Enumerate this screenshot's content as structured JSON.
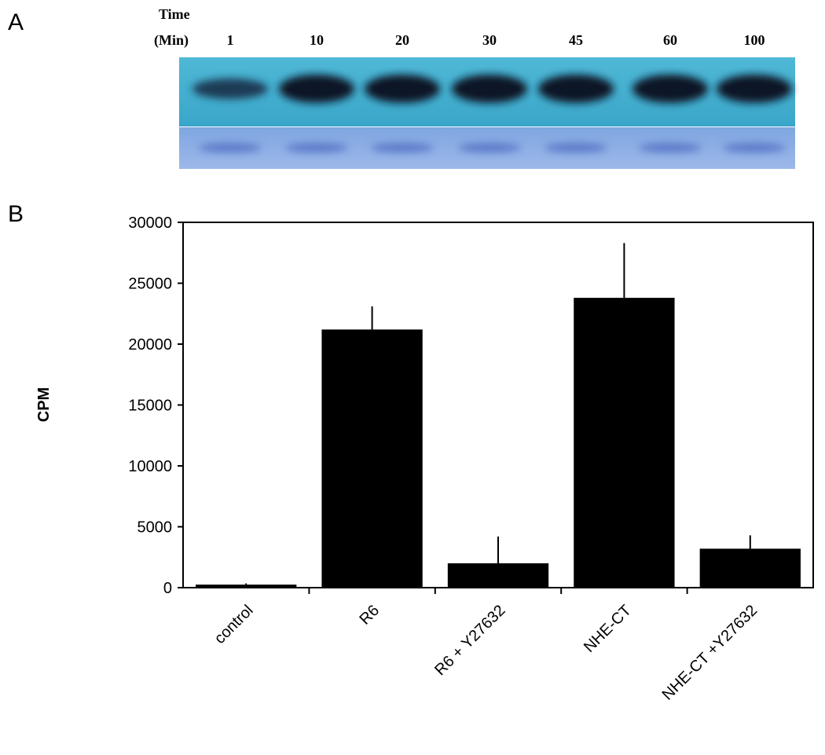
{
  "panels": [
    "A",
    "B"
  ],
  "blot": {
    "header": [
      "Time",
      "(Min)"
    ],
    "lanes": [
      "1",
      "10",
      "20",
      "30",
      "45",
      "60",
      "100"
    ]
  },
  "chart_data": {
    "type": "bar",
    "y_label": "CPM",
    "categories": [
      "control",
      "R6",
      "R6 + Y27632",
      "NHE-CT",
      "NHE-CT +Y27632"
    ],
    "values": [
      250,
      21200,
      2000,
      23800,
      3200
    ],
    "errors": [
      100,
      1900,
      2200,
      4500,
      1100
    ],
    "color": "#000000",
    "ylim": [
      0,
      30000
    ],
    "yticks": [
      0,
      5000,
      10000,
      15000,
      20000,
      25000,
      30000
    ]
  }
}
